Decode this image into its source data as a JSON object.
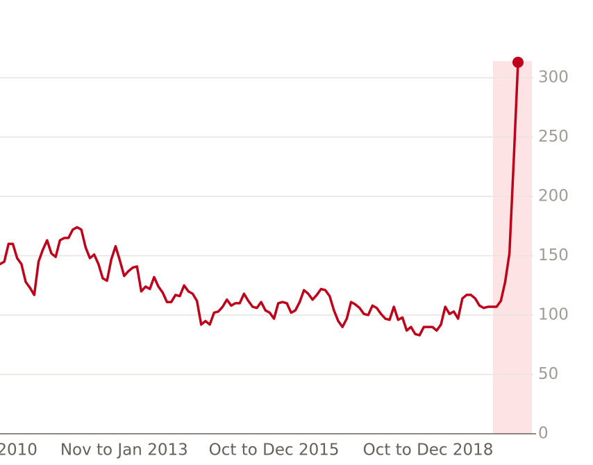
{
  "chart_data": {
    "type": "line",
    "categories": [
      null,
      null,
      null,
      null,
      "2010",
      null,
      null,
      null,
      null,
      null,
      null,
      null,
      null,
      null,
      null,
      null,
      null,
      null,
      null,
      null,
      null,
      null,
      null,
      null,
      null,
      null,
      null,
      null,
      null,
      "Nov to Jan 2013",
      null,
      null,
      null,
      null,
      null,
      null,
      null,
      null,
      null,
      null,
      null,
      null,
      null,
      null,
      null,
      null,
      null,
      null,
      null,
      null,
      null,
      null,
      null,
      null,
      null,
      null,
      null,
      null,
      null,
      null,
      null,
      null,
      null,
      null,
      "Oct to Dec 2015",
      null,
      null,
      null,
      null,
      null,
      null,
      null,
      null,
      null,
      null,
      null,
      null,
      null,
      null,
      null,
      null,
      null,
      null,
      null,
      null,
      null,
      null,
      null,
      null,
      null,
      null,
      null,
      null,
      null,
      null,
      null,
      null,
      null,
      null,
      null,
      "Oct to Dec 2018",
      null,
      null,
      null,
      null,
      null,
      null,
      null,
      null,
      null,
      null,
      null,
      null,
      null,
      null,
      null,
      null,
      null,
      null,
      null,
      null,
      null
    ],
    "values": [
      143,
      145,
      160,
      160,
      148,
      143,
      128,
      123,
      117,
      145,
      155,
      163,
      152,
      149,
      163,
      165,
      165,
      172,
      174,
      172,
      157,
      148,
      151,
      143,
      131,
      129,
      147,
      158,
      146,
      133,
      137,
      140,
      141,
      120,
      124,
      122,
      132,
      124,
      119,
      111,
      111,
      117,
      116,
      125,
      120,
      118,
      112,
      92,
      95,
      92,
      102,
      103,
      107,
      113,
      108,
      110,
      110,
      118,
      112,
      107,
      106,
      111,
      104,
      102,
      97,
      110,
      111,
      110,
      102,
      104,
      111,
      121,
      118,
      113,
      117,
      122,
      121,
      116,
      104,
      95,
      90,
      97,
      111,
      109,
      106,
      101,
      100,
      108,
      106,
      101,
      97,
      96,
      107,
      96,
      98,
      87,
      90,
      84,
      83,
      90,
      90,
      90,
      87,
      92,
      107,
      101,
      103,
      97,
      114,
      117,
      117,
      114,
      108,
      106,
      107,
      107,
      107,
      112,
      128,
      152,
      230,
      313
    ],
    "color": "#c0001a",
    "ylim": [
      0,
      300
    ],
    "yticks": [
      0,
      50,
      100,
      150,
      200,
      250,
      300
    ],
    "grid": true,
    "y_axis_side": "right"
  }
}
